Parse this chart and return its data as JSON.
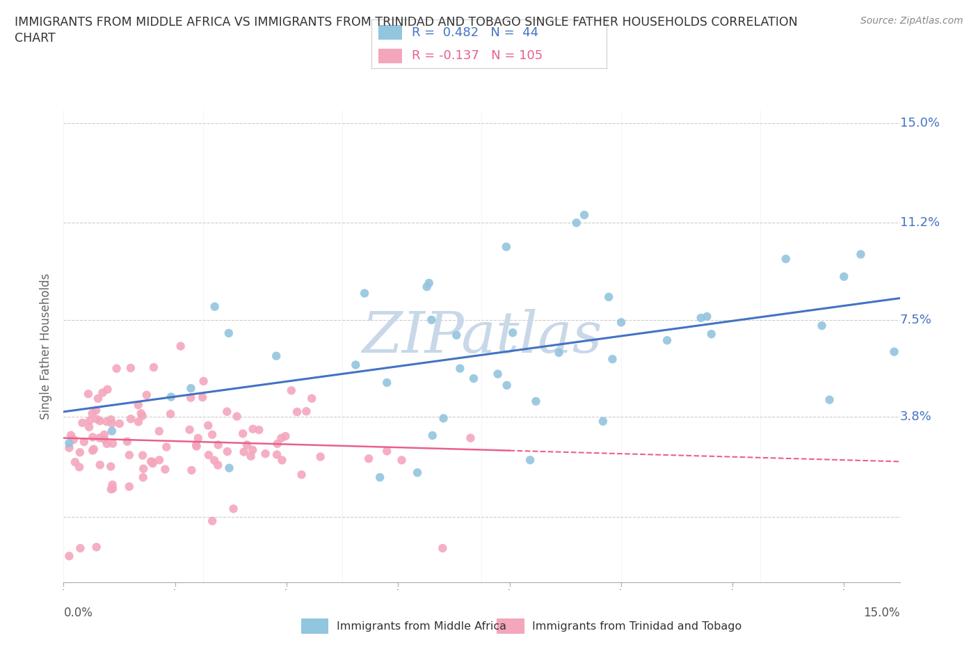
{
  "title_line1": "IMMIGRANTS FROM MIDDLE AFRICA VS IMMIGRANTS FROM TRINIDAD AND TOBAGO SINGLE FATHER HOUSEHOLDS CORRELATION",
  "title_line2": "CHART",
  "source": "Source: ZipAtlas.com",
  "ylabel": "Single Father Households",
  "color_blue": "#92C5DE",
  "color_pink": "#F4A6BD",
  "line_blue": "#4472C4",
  "line_pink": "#E8608A",
  "watermark_color": "#C8D8E8",
  "background_color": "#FFFFFF",
  "grid_color": "#CCCCCC",
  "xlim": [
    0.0,
    0.15
  ],
  "ylim": [
    -0.025,
    0.155
  ],
  "ytick_positions": [
    0.0,
    0.038,
    0.075,
    0.112,
    0.15
  ],
  "ytick_labels": [
    "",
    "3.8%",
    "7.5%",
    "11.2%",
    "15.0%"
  ],
  "xtick_positions": [
    0.0,
    0.025,
    0.05,
    0.075,
    0.1,
    0.125,
    0.15
  ],
  "r_blue": 0.482,
  "n_blue": 44,
  "r_pink": -0.137,
  "n_pink": 105
}
